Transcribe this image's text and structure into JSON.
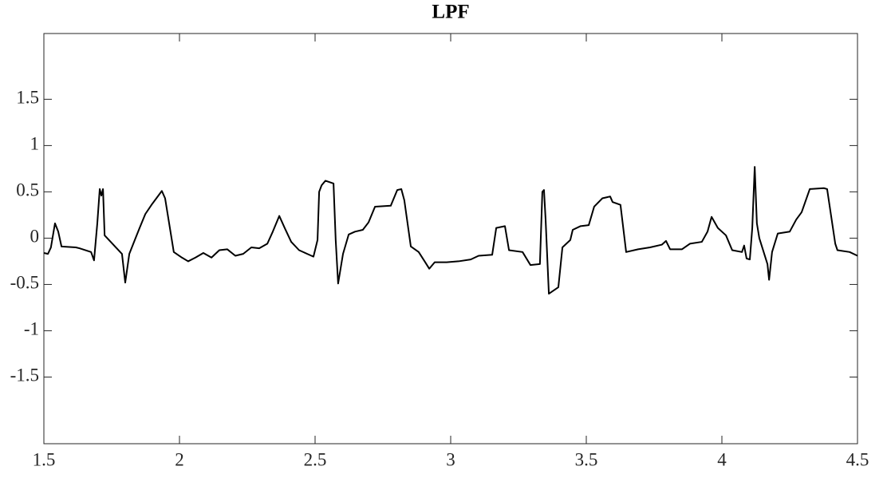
{
  "chart_data": {
    "type": "line",
    "title": "LPF",
    "color": "#000000",
    "grid": false,
    "x": [
      1.5,
      1.515,
      1.526,
      1.541,
      1.553,
      1.565,
      1.618,
      1.632,
      1.674,
      1.685,
      1.697,
      1.706,
      1.712,
      1.718,
      1.724,
      1.788,
      1.8,
      1.815,
      1.838,
      1.853,
      1.874,
      1.897,
      1.935,
      1.947,
      1.979,
      2.009,
      2.032,
      2.059,
      2.088,
      2.118,
      2.147,
      2.176,
      2.206,
      2.235,
      2.265,
      2.294,
      2.324,
      2.344,
      2.368,
      2.388,
      2.412,
      2.441,
      2.471,
      2.494,
      2.509,
      2.515,
      2.524,
      2.538,
      2.568,
      2.576,
      2.585,
      2.603,
      2.624,
      2.647,
      2.676,
      2.697,
      2.721,
      2.779,
      2.803,
      2.818,
      2.829,
      2.853,
      2.882,
      2.906,
      2.921,
      2.941,
      2.985,
      3.029,
      3.074,
      3.103,
      3.153,
      3.168,
      3.2,
      3.215,
      3.265,
      3.294,
      3.329,
      3.338,
      3.344,
      3.35,
      3.362,
      3.397,
      3.412,
      3.441,
      3.45,
      3.479,
      3.509,
      3.529,
      3.559,
      3.588,
      3.597,
      3.626,
      3.647,
      3.691,
      3.735,
      3.779,
      3.794,
      3.809,
      3.853,
      3.882,
      3.926,
      3.947,
      3.962,
      3.985,
      4.015,
      4.038,
      4.074,
      4.082,
      4.091,
      4.103,
      4.112,
      4.121,
      4.129,
      4.138,
      4.168,
      4.174,
      4.185,
      4.206,
      4.25,
      4.274,
      4.294,
      4.324,
      4.376,
      4.388,
      4.418,
      4.426,
      4.471,
      4.5
    ],
    "values": [
      -0.16,
      -0.17,
      -0.1,
      0.16,
      0.07,
      -0.09,
      -0.1,
      -0.11,
      -0.15,
      -0.24,
      0.16,
      0.53,
      0.46,
      0.53,
      0.03,
      -0.17,
      -0.48,
      -0.17,
      0.0,
      0.11,
      0.26,
      0.36,
      0.51,
      0.43,
      -0.15,
      -0.21,
      -0.25,
      -0.21,
      -0.16,
      -0.21,
      -0.13,
      -0.12,
      -0.19,
      -0.17,
      -0.1,
      -0.11,
      -0.06,
      0.07,
      0.24,
      0.11,
      -0.04,
      -0.13,
      -0.17,
      -0.2,
      -0.02,
      0.5,
      0.57,
      0.62,
      0.59,
      -0.02,
      -0.49,
      -0.17,
      0.04,
      0.07,
      0.09,
      0.17,
      0.34,
      0.35,
      0.52,
      0.53,
      0.41,
      -0.09,
      -0.15,
      -0.26,
      -0.33,
      -0.26,
      -0.26,
      -0.25,
      -0.23,
      -0.19,
      -0.18,
      0.11,
      0.13,
      -0.13,
      -0.15,
      -0.29,
      -0.28,
      0.5,
      0.52,
      0.2,
      -0.6,
      -0.53,
      -0.1,
      -0.02,
      0.09,
      0.13,
      0.14,
      0.34,
      0.43,
      0.45,
      0.39,
      0.36,
      -0.15,
      -0.12,
      -0.1,
      -0.07,
      -0.03,
      -0.12,
      -0.12,
      -0.06,
      -0.04,
      0.07,
      0.23,
      0.11,
      0.03,
      -0.13,
      -0.15,
      -0.08,
      -0.22,
      -0.23,
      0.11,
      0.77,
      0.16,
      0.0,
      -0.28,
      -0.45,
      -0.15,
      0.05,
      0.07,
      0.2,
      0.28,
      0.53,
      0.54,
      0.53,
      -0.06,
      -0.13,
      -0.15,
      -0.19
    ],
    "xlim": [
      1.5,
      4.5
    ],
    "xticks": [
      1.5,
      2,
      2.5,
      3,
      3.5,
      4,
      4.5
    ],
    "ylim": [
      -2.22,
      2.21
    ],
    "yticks": [
      -1.5,
      -1,
      -0.5,
      0,
      0.5,
      1,
      1.5
    ]
  }
}
